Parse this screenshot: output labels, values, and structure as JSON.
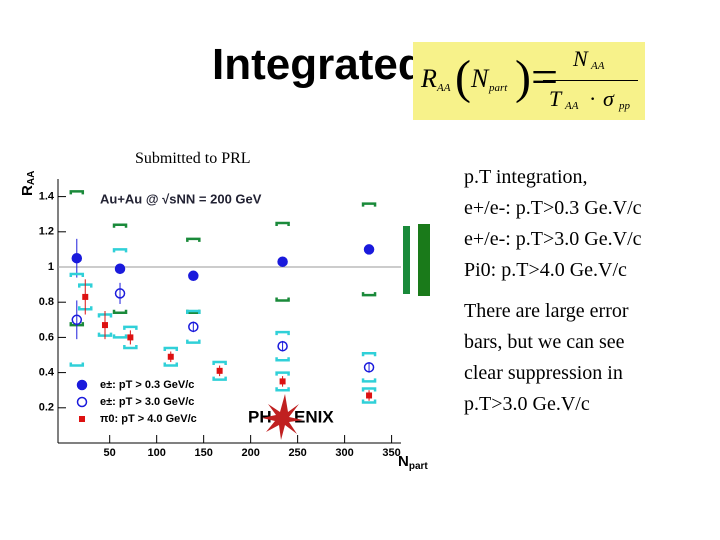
{
  "slide": {
    "title": "Integrated",
    "note": "Submitted to PRL",
    "formula": {
      "r": "R",
      "r_sub": "AA",
      "n": "N",
      "n_sub": "part",
      "num": "N",
      "num_sub": "AA",
      "den": "T",
      "den_sub": "AA",
      "sigma": "σ",
      "sigma_sub": "pp"
    },
    "text_block_1": [
      "p.T integration,",
      "e+/e-: p.T>0.3 Ge.V/c",
      "e+/e-: p.T>3.0 Ge.V/c",
      "Pi0: p.T>4.0 Ge.V/c"
    ],
    "text_block_2": [
      "There are large error",
      "bars, but we can see",
      "clear suppression in",
      "p.T>3.0 Ge.V/c"
    ]
  },
  "chart_data": {
    "type": "scatter",
    "y_label": "R",
    "y_label_sub": "AA",
    "x_label": "N",
    "x_label_sub": "part",
    "annotation": "Au+Au @ √sNN = 200 GeV",
    "logo_left": "PH",
    "logo_right": "ENIX",
    "xlim": [
      -5,
      360
    ],
    "xticks": [
      50,
      100,
      150,
      200,
      250,
      300,
      350
    ],
    "ylim": [
      0,
      1.5
    ],
    "yticks": [
      0.2,
      0.4,
      0.6,
      0.8,
      1,
      1.2,
      1.4
    ],
    "reference_line": 1,
    "legend": "lower left",
    "series": [
      {
        "name": "e±: pT > 0.3 GeV/c",
        "color": "#1a1adc",
        "marker": "filled-circle",
        "sys_color": "#1a8a3a",
        "x": [
          15,
          61,
          139,
          234,
          326
        ],
        "values": [
          1.05,
          0.99,
          0.95,
          1.03,
          1.1
        ],
        "errors": [
          0.11,
          0.03,
          0.02,
          0.02,
          0.02
        ],
        "sys_errors": [
          0.38,
          0.25,
          0.21,
          0.22,
          0.26
        ]
      },
      {
        "name": "e±: pT > 3.0 GeV/c",
        "color": "#1a1adc",
        "marker": "open-circle",
        "sys_color": "#30d0d8",
        "x": [
          15,
          61,
          139,
          234,
          326
        ],
        "values": [
          0.7,
          0.85,
          0.66,
          0.55,
          0.43
        ],
        "errors": [
          0.11,
          0.06,
          0.03,
          0.03,
          0.03
        ],
        "sys_errors": [
          0.26,
          0.25,
          0.09,
          0.08,
          0.08
        ]
      },
      {
        "name": "π0: pT > 4.0 GeV/c",
        "color": "#dd1111",
        "marker": "square",
        "sys_color": "#30d0d8",
        "x": [
          24,
          45,
          72,
          115,
          167,
          234,
          326
        ],
        "values": [
          0.83,
          0.67,
          0.6,
          0.49,
          0.41,
          0.35,
          0.27
        ],
        "errors": [
          0.1,
          0.08,
          0.04,
          0.03,
          0.03,
          0.03,
          0.03
        ],
        "sys_errors": [
          0.07,
          0.06,
          0.06,
          0.05,
          0.05,
          0.05,
          0.04
        ]
      }
    ]
  }
}
